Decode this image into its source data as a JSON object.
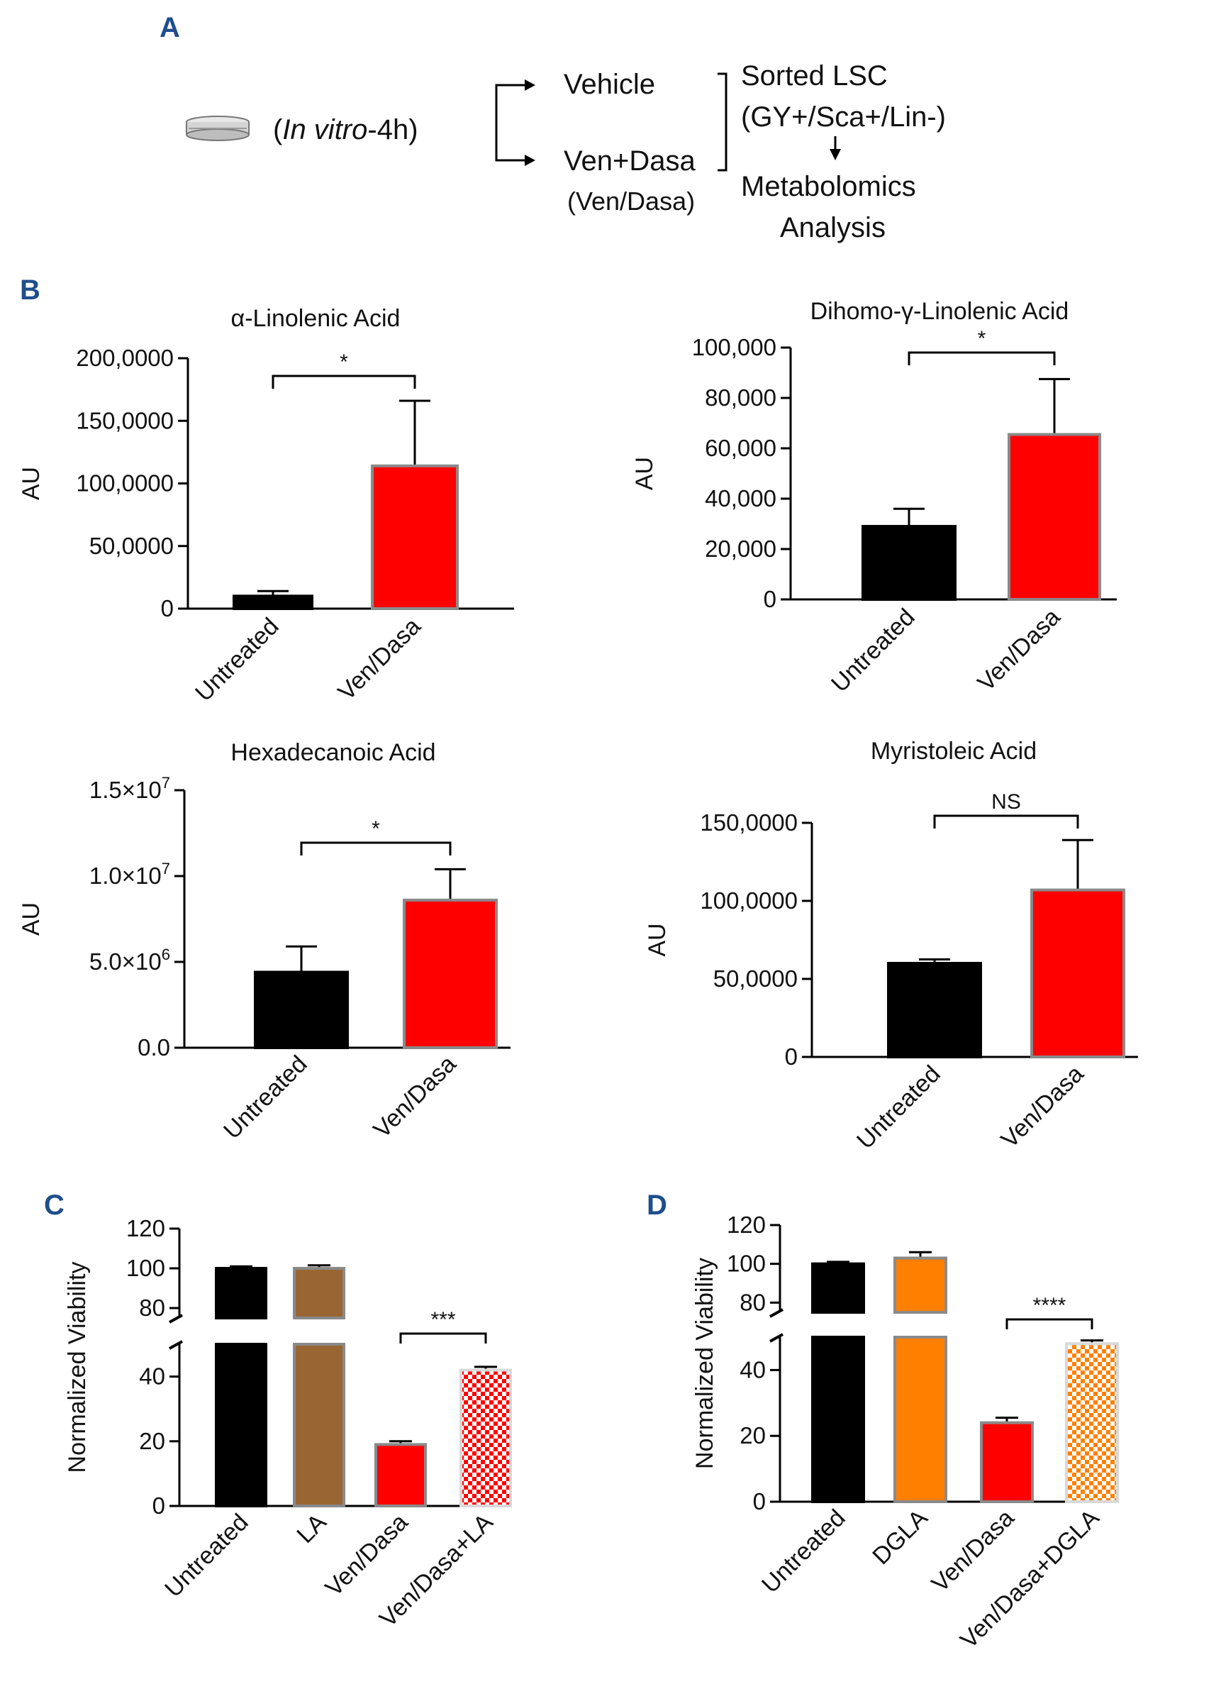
{
  "colors": {
    "panel_letter": "#1f4e8c",
    "untreated": "#000000",
    "ven_dasa": "#ff0000",
    "bar_edge": "#8a8a8a",
    "la": "#996633",
    "dgla": "#ff8000",
    "check_light": "#ffffff"
  },
  "panel_a": {
    "letter": "A",
    "condition_prefix": "(",
    "condition_italic": "In vitro",
    "condition_suffix": "-4h)",
    "arm1": "Vehicle",
    "arm2": "Ven+Dasa",
    "arm2_sub": "(Ven/Dasa)",
    "sorted_line1": "Sorted LSC",
    "sorted_line2": "(GY+/Sca+/Lin-)",
    "analysis_line1": "Metabolomics",
    "analysis_line2": "Analysis",
    "dish_icon": "petri-dish-icon",
    "arrow_icon": "arrow-right-icon"
  },
  "panel_b": {
    "letter": "B"
  },
  "panel_c": {
    "letter": "C"
  },
  "panel_d": {
    "letter": "D"
  },
  "chart_data": [
    {
      "type": "bar",
      "panel": "B",
      "title": "α-Linolenic Acid",
      "ylabel": "AU",
      "categories": [
        "Untreated",
        "Ven/Dasa"
      ],
      "values": [
        100000,
        1140000
      ],
      "errors": [
        40000,
        520000
      ],
      "colors": [
        "#000000",
        "#ff0000"
      ],
      "ylim": [
        0,
        2000000
      ],
      "yticks": [
        0,
        500000,
        1000000,
        1500000,
        2000000
      ],
      "yticklabels": [
        "0",
        "50,0000",
        "100,0000",
        "150,0000",
        "200,0000"
      ],
      "significance": "*"
    },
    {
      "type": "bar",
      "panel": "B",
      "title": "Dihomo-γ-Linolenic Acid",
      "ylabel": "AU",
      "categories": [
        "Untreated",
        "Ven/Dasa"
      ],
      "values": [
        29000,
        65500
      ],
      "errors": [
        7000,
        22000
      ],
      "colors": [
        "#000000",
        "#ff0000"
      ],
      "ylim": [
        0,
        100000
      ],
      "yticks": [
        0,
        20000,
        40000,
        60000,
        80000,
        100000
      ],
      "yticklabels": [
        "0",
        "20,000",
        "40,000",
        "60,000",
        "80,000",
        "100,000"
      ],
      "significance": "*"
    },
    {
      "type": "bar",
      "panel": "B",
      "title": "Hexadecanoic Acid",
      "ylabel": "AU",
      "categories": [
        "Untreated",
        "Ven/Dasa"
      ],
      "values": [
        4400000,
        8600000
      ],
      "errors": [
        1500000,
        1800000
      ],
      "colors": [
        "#000000",
        "#ff0000"
      ],
      "ylim": [
        0,
        15000000
      ],
      "yticks": [
        0,
        5000000,
        10000000,
        15000000
      ],
      "yticklabels": [
        {
          "base": "0.0",
          "exp": ""
        },
        {
          "base": "5.0×10",
          "exp": "6"
        },
        {
          "base": "1.0×10",
          "exp": "7"
        },
        {
          "base": "1.5×10",
          "exp": "7"
        }
      ],
      "significance": "*"
    },
    {
      "type": "bar",
      "panel": "B",
      "title": "Myristoleic Acid",
      "ylabel": "AU",
      "categories": [
        "Untreated",
        "Ven/Dasa"
      ],
      "values": [
        600000,
        1070000
      ],
      "errors": [
        25000,
        320000
      ],
      "colors": [
        "#000000",
        "#ff0000"
      ],
      "ylim": [
        0,
        1500000
      ],
      "yticks": [
        0,
        500000,
        1000000,
        1500000
      ],
      "yticklabels": [
        "0",
        "50,0000",
        "100,0000",
        "150,0000"
      ],
      "significance": "NS"
    },
    {
      "type": "bar",
      "panel": "C",
      "ylabel": "Normalized Viability",
      "categories": [
        "Untreated",
        "LA",
        "Ven/Dasa",
        "Ven/Dasa+LA"
      ],
      "values": [
        100,
        100,
        19,
        42
      ],
      "errors": [
        1,
        1.5,
        1,
        1
      ],
      "colors": [
        "#000000",
        "#996633",
        "#ff0000",
        "#ff0000"
      ],
      "patterned": [
        false,
        false,
        false,
        true
      ],
      "axis_break": {
        "lower": [
          0,
          50
        ],
        "upper": [
          75,
          120
        ]
      },
      "yticks_lower": [
        0,
        20,
        40
      ],
      "yticks_upper": [
        80,
        100,
        120
      ],
      "significance": "***",
      "comparison": [
        "Ven/Dasa",
        "Ven/Dasa+LA"
      ]
    },
    {
      "type": "bar",
      "panel": "D",
      "ylabel": "Normalized Viability",
      "categories": [
        "Untreated",
        "DGLA",
        "Ven/Dasa",
        "Ven/Dasa+DGLA"
      ],
      "values": [
        100,
        103,
        24,
        48
      ],
      "errors": [
        1,
        3,
        1.5,
        1
      ],
      "colors": [
        "#000000",
        "#ff8000",
        "#ff0000",
        "#ff8000"
      ],
      "patterned": [
        false,
        false,
        false,
        true
      ],
      "axis_break": {
        "lower": [
          0,
          50
        ],
        "upper": [
          75,
          120
        ]
      },
      "yticks_lower": [
        0,
        20,
        40
      ],
      "yticks_upper": [
        80,
        100,
        120
      ],
      "significance": "****",
      "comparison": [
        "Ven/Dasa",
        "Ven/Dasa+DGLA"
      ]
    }
  ]
}
